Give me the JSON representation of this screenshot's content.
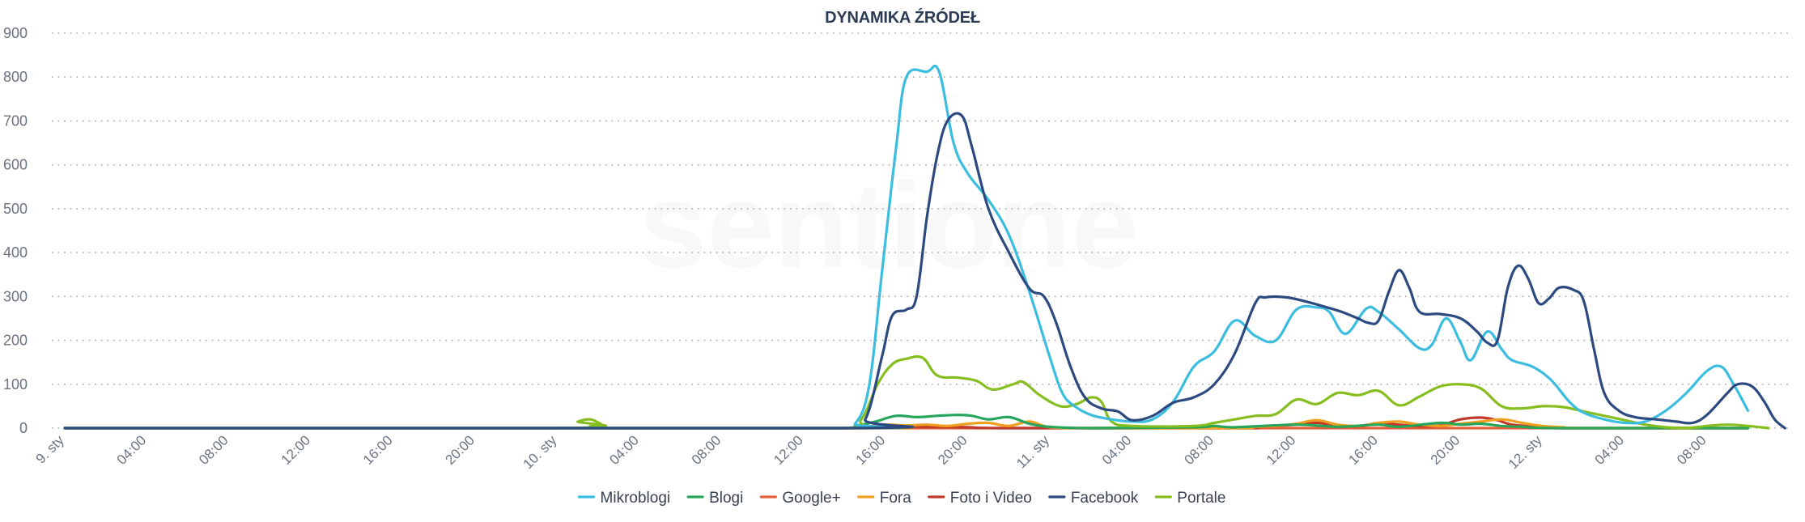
{
  "chart_data": {
    "type": "line",
    "title": "DYNAMIKA ŹRÓDEŁ",
    "watermark": "sentione",
    "ylim": [
      0,
      900
    ],
    "yticks": [
      0,
      100,
      200,
      300,
      400,
      500,
      600,
      700,
      800,
      900
    ],
    "grid": "horizontal dotted",
    "legend_position": "bottom-center",
    "x_start": "9. sty 00:00",
    "x_step": "1 hour",
    "xlim": [
      0,
      82
    ],
    "x_ticks": [
      {
        "label": "9. sty",
        "pos": 0
      },
      {
        "label": "04:00",
        "pos": 4
      },
      {
        "label": "08:00",
        "pos": 8
      },
      {
        "label": "12:00",
        "pos": 12
      },
      {
        "label": "16:00",
        "pos": 16
      },
      {
        "label": "20:00",
        "pos": 20
      },
      {
        "label": "10. sty",
        "pos": 24
      },
      {
        "label": "04:00",
        "pos": 28
      },
      {
        "label": "08:00",
        "pos": 32
      },
      {
        "label": "12:00",
        "pos": 36
      },
      {
        "label": "16:00",
        "pos": 40
      },
      {
        "label": "20:00",
        "pos": 44
      },
      {
        "label": "11. sty",
        "pos": 48
      },
      {
        "label": "04:00",
        "pos": 52
      },
      {
        "label": "08:00",
        "pos": 56
      },
      {
        "label": "12:00",
        "pos": 60
      },
      {
        "label": "16:00",
        "pos": 64
      },
      {
        "label": "20:00",
        "pos": 68
      },
      {
        "label": "12. sty",
        "pos": 72
      },
      {
        "label": "04:00",
        "pos": 76
      },
      {
        "label": "08:00",
        "pos": 80
      }
    ],
    "series": [
      {
        "name": "Mikroblogi",
        "color": "#3bbde0",
        "points": [
          [
            0,
            0
          ],
          [
            37.5,
            0
          ],
          [
            38.5,
            10
          ],
          [
            39.2,
            100
          ],
          [
            39.8,
            350
          ],
          [
            40.5,
            640
          ],
          [
            41,
            800
          ],
          [
            42,
            812
          ],
          [
            42.6,
            812
          ],
          [
            43.3,
            650
          ],
          [
            44,
            580
          ],
          [
            45,
            520
          ],
          [
            46,
            440
          ],
          [
            47,
            310
          ],
          [
            48,
            160
          ],
          [
            48.6,
            80
          ],
          [
            49.2,
            50
          ],
          [
            50,
            30
          ],
          [
            51,
            20
          ],
          [
            52,
            15
          ],
          [
            53,
            20
          ],
          [
            54,
            60
          ],
          [
            55,
            140
          ],
          [
            56,
            175
          ],
          [
            57,
            245
          ],
          [
            58,
            210
          ],
          [
            59,
            200
          ],
          [
            60,
            270
          ],
          [
            61,
            275
          ],
          [
            61.6,
            265
          ],
          [
            62.4,
            215
          ],
          [
            63.4,
            272
          ],
          [
            64,
            265
          ],
          [
            65,
            225
          ],
          [
            66,
            182
          ],
          [
            66.6,
            190
          ],
          [
            67.3,
            250
          ],
          [
            68,
            195
          ],
          [
            68.5,
            155
          ],
          [
            69.3,
            220
          ],
          [
            70,
            180
          ],
          [
            70.5,
            155
          ],
          [
            71.5,
            140
          ],
          [
            72.4,
            110
          ],
          [
            73.3,
            60
          ],
          [
            74,
            35
          ],
          [
            75,
            20
          ],
          [
            76,
            12
          ],
          [
            77,
            15
          ],
          [
            78,
            40
          ],
          [
            79,
            80
          ],
          [
            80,
            130
          ],
          [
            80.7,
            140
          ],
          [
            81.3,
            100
          ],
          [
            82,
            40
          ]
        ]
      },
      {
        "name": "Blogi",
        "color": "#26a65b",
        "points": [
          [
            0,
            0
          ],
          [
            37.5,
            0
          ],
          [
            38.5,
            5
          ],
          [
            39.5,
            15
          ],
          [
            40.5,
            28
          ],
          [
            41.5,
            25
          ],
          [
            42.5,
            28
          ],
          [
            43.5,
            30
          ],
          [
            44.2,
            28
          ],
          [
            45,
            20
          ],
          [
            46,
            25
          ],
          [
            47,
            10
          ],
          [
            48,
            3
          ],
          [
            50,
            0
          ],
          [
            55,
            2
          ],
          [
            56,
            5
          ],
          [
            57,
            2
          ],
          [
            60,
            8
          ],
          [
            62,
            3
          ],
          [
            64,
            8
          ],
          [
            65,
            3
          ],
          [
            67,
            12
          ],
          [
            68,
            8
          ],
          [
            69,
            10
          ],
          [
            70,
            5
          ],
          [
            71,
            3
          ],
          [
            73,
            0
          ],
          [
            82,
            0
          ]
        ]
      },
      {
        "name": "Google+",
        "color": "#e8603c",
        "points": [
          [
            0,
            0
          ],
          [
            82,
            0
          ]
        ]
      },
      {
        "name": "Fora",
        "color": "#f0a020",
        "points": [
          [
            0,
            0
          ],
          [
            38,
            0
          ],
          [
            39,
            3
          ],
          [
            40,
            8
          ],
          [
            41,
            6
          ],
          [
            42,
            8
          ],
          [
            43,
            5
          ],
          [
            44,
            10
          ],
          [
            45,
            12
          ],
          [
            46,
            5
          ],
          [
            47,
            15
          ],
          [
            48,
            2
          ],
          [
            50,
            0
          ],
          [
            57,
            0
          ],
          [
            58,
            3
          ],
          [
            59,
            5
          ],
          [
            60,
            10
          ],
          [
            61,
            18
          ],
          [
            62,
            8
          ],
          [
            63,
            5
          ],
          [
            64,
            12
          ],
          [
            65,
            15
          ],
          [
            66,
            8
          ],
          [
            67,
            5
          ],
          [
            68,
            10
          ],
          [
            69,
            15
          ],
          [
            70,
            20
          ],
          [
            71,
            12
          ],
          [
            72,
            5
          ],
          [
            73,
            2
          ],
          [
            74,
            0
          ],
          [
            82,
            0
          ]
        ]
      },
      {
        "name": "Foto i Video",
        "color": "#c0392b",
        "points": [
          [
            0,
            0
          ],
          [
            38,
            0
          ],
          [
            39,
            2
          ],
          [
            40,
            5
          ],
          [
            42,
            3
          ],
          [
            44,
            2
          ],
          [
            46,
            0
          ],
          [
            57,
            0
          ],
          [
            58,
            2
          ],
          [
            59,
            5
          ],
          [
            60,
            8
          ],
          [
            61,
            12
          ],
          [
            62,
            6
          ],
          [
            63,
            4
          ],
          [
            64,
            10
          ],
          [
            65,
            8
          ],
          [
            66,
            4
          ],
          [
            67,
            6
          ],
          [
            68,
            20
          ],
          [
            69,
            24
          ],
          [
            69.8,
            18
          ],
          [
            70.5,
            8
          ],
          [
            72,
            2
          ],
          [
            73,
            0
          ],
          [
            82,
            0
          ]
        ]
      },
      {
        "name": "Facebook",
        "color": "#2c4a80",
        "points": [
          [
            0,
            0
          ],
          [
            38,
            0
          ],
          [
            39,
            20
          ],
          [
            39.8,
            160
          ],
          [
            40.3,
            255
          ],
          [
            41,
            270
          ],
          [
            41.5,
            300
          ],
          [
            42,
            480
          ],
          [
            42.5,
            620
          ],
          [
            43,
            700
          ],
          [
            43.7,
            712
          ],
          [
            44.2,
            640
          ],
          [
            45,
            500
          ],
          [
            46,
            400
          ],
          [
            47,
            318
          ],
          [
            47.7,
            300
          ],
          [
            48.3,
            240
          ],
          [
            49,
            140
          ],
          [
            49.7,
            70
          ],
          [
            50.5,
            45
          ],
          [
            51.3,
            38
          ],
          [
            52,
            18
          ],
          [
            53,
            28
          ],
          [
            54,
            58
          ],
          [
            55,
            70
          ],
          [
            56,
            100
          ],
          [
            57,
            170
          ],
          [
            58,
            285
          ],
          [
            58.5,
            298
          ],
          [
            59.5,
            298
          ],
          [
            60.5,
            288
          ],
          [
            61.5,
            275
          ],
          [
            62.2,
            265
          ],
          [
            63,
            250
          ],
          [
            63.5,
            240
          ],
          [
            64,
            245
          ],
          [
            64.5,
            310
          ],
          [
            65,
            360
          ],
          [
            65.5,
            320
          ],
          [
            66,
            265
          ],
          [
            67,
            260
          ],
          [
            68,
            250
          ],
          [
            68.8,
            220
          ],
          [
            69.3,
            195
          ],
          [
            69.8,
            200
          ],
          [
            70.3,
            320
          ],
          [
            70.8,
            370
          ],
          [
            71.3,
            340
          ],
          [
            71.8,
            285
          ],
          [
            72.3,
            295
          ],
          [
            72.8,
            320
          ],
          [
            73.5,
            315
          ],
          [
            74,
            290
          ],
          [
            74.5,
            180
          ],
          [
            75,
            80
          ],
          [
            75.7,
            40
          ],
          [
            76.5,
            25
          ],
          [
            77.5,
            20
          ],
          [
            78.5,
            15
          ],
          [
            79.3,
            12
          ],
          [
            80,
            30
          ],
          [
            81,
            80
          ],
          [
            81.5,
            100
          ],
          [
            82.2,
            95
          ],
          [
            82.8,
            60
          ],
          [
            83.3,
            20
          ],
          [
            83.8,
            0
          ]
        ]
      },
      {
        "name": "Portale",
        "color": "#86bd1f",
        "points": [
          [
            0,
            0
          ],
          [
            24.2,
            0
          ],
          [
            25,
            15
          ],
          [
            25.6,
            20
          ],
          [
            26.1,
            10
          ],
          [
            26.6,
            0
          ],
          [
            37.8,
            0
          ],
          [
            38.8,
            20
          ],
          [
            39.6,
            100
          ],
          [
            40.3,
            145
          ],
          [
            41,
            158
          ],
          [
            41.8,
            160
          ],
          [
            42.5,
            120
          ],
          [
            43.5,
            115
          ],
          [
            44.4,
            108
          ],
          [
            45.2,
            88
          ],
          [
            46.2,
            100
          ],
          [
            46.7,
            105
          ],
          [
            47.5,
            75
          ],
          [
            48.5,
            50
          ],
          [
            49.3,
            55
          ],
          [
            50,
            70
          ],
          [
            50.5,
            60
          ],
          [
            51,
            15
          ],
          [
            52,
            5
          ],
          [
            55,
            5
          ],
          [
            56,
            12
          ],
          [
            57,
            20
          ],
          [
            58,
            28
          ],
          [
            59,
            32
          ],
          [
            60,
            65
          ],
          [
            61,
            55
          ],
          [
            62,
            80
          ],
          [
            63,
            75
          ],
          [
            64,
            85
          ],
          [
            65,
            52
          ],
          [
            66,
            72
          ],
          [
            67,
            95
          ],
          [
            68,
            100
          ],
          [
            69,
            90
          ],
          [
            70,
            50
          ],
          [
            71,
            45
          ],
          [
            72,
            50
          ],
          [
            73,
            48
          ],
          [
            74,
            38
          ],
          [
            75,
            28
          ],
          [
            76,
            18
          ],
          [
            77,
            8
          ],
          [
            78,
            2
          ],
          [
            79,
            0
          ],
          [
            80,
            5
          ],
          [
            81,
            8
          ],
          [
            82,
            5
          ],
          [
            83,
            0
          ]
        ]
      }
    ]
  }
}
